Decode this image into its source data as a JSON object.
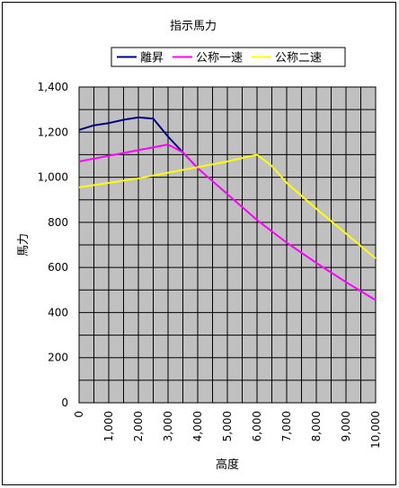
{
  "chart_data": {
    "type": "line",
    "title": "指示馬力",
    "xlabel": "高度",
    "ylabel": "馬力",
    "xlim": [
      0,
      10000
    ],
    "ylim": [
      0,
      1400
    ],
    "x_ticks": [
      "0",
      "1,000",
      "2,000",
      "3,000",
      "4,000",
      "5,000",
      "6,000",
      "7,000",
      "8,000",
      "9,000",
      "10,000"
    ],
    "y_ticks": [
      "0",
      "200",
      "400",
      "600",
      "800",
      "1,000",
      "1,200",
      "1,400"
    ],
    "grid": true,
    "plot_background": "#c0c0c0",
    "legend_position": "top",
    "series": [
      {
        "name": "離昇",
        "color": "#000080",
        "x": [
          0,
          500,
          1000,
          1500,
          2000,
          2500,
          3000,
          3500,
          4000
        ],
        "y": [
          1210,
          1230,
          1240,
          1255,
          1265,
          1260,
          1180,
          1110,
          1040
        ]
      },
      {
        "name": "公称一速",
        "color": "#ff00ff",
        "x": [
          0,
          1000,
          2000,
          3000,
          3500,
          4000,
          5000,
          6000,
          7000,
          8000,
          9000,
          10000
        ],
        "y": [
          1070,
          1095,
          1120,
          1145,
          1110,
          1040,
          925,
          810,
          710,
          620,
          535,
          455
        ]
      },
      {
        "name": "公称二速",
        "color": "#ffff00",
        "x": [
          0,
          1000,
          2000,
          3000,
          4000,
          5000,
          6000,
          6500,
          7000,
          8000,
          9000,
          10000
        ],
        "y": [
          955,
          975,
          995,
          1020,
          1045,
          1070,
          1100,
          1050,
          975,
          860,
          750,
          640
        ]
      }
    ]
  }
}
